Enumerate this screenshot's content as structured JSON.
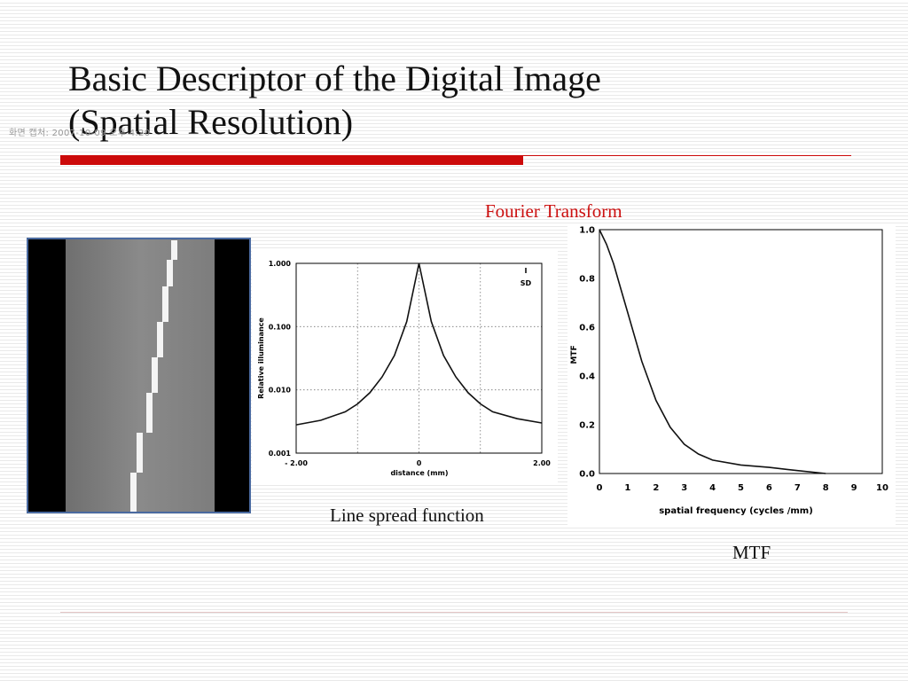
{
  "slide": {
    "title_line1": "Basic Descriptor of the Digital Image",
    "title_line2": "(Spatial Resolution)",
    "watermark": "화면 캡처: 2007-10-09 오후 4:20",
    "fourier_label": "Fourier Transform",
    "lsf_caption": "Line spread function",
    "mtf_caption": "MTF"
  },
  "chart_data": [
    {
      "type": "line",
      "name": "lsf",
      "xlabel": "distance (mm)",
      "ylabel": "Relative illuminance",
      "yscale": "log",
      "xlim": [
        -2.0,
        2.0
      ],
      "ylim": [
        0.001,
        1.0
      ],
      "x_tick_labels": [
        "- 2.00",
        "0",
        "2.00"
      ],
      "y_tick_labels": [
        "0.001",
        "0.010",
        "0.100",
        "1.000"
      ],
      "legend": [
        "I",
        "SD"
      ],
      "grid": true,
      "x": [
        -2.0,
        -1.6,
        -1.2,
        -1.0,
        -0.8,
        -0.6,
        -0.4,
        -0.2,
        0.0,
        0.2,
        0.4,
        0.6,
        0.8,
        1.0,
        1.2,
        1.6,
        2.0
      ],
      "y": [
        0.0028,
        0.0033,
        0.0045,
        0.006,
        0.009,
        0.016,
        0.035,
        0.12,
        1.0,
        0.12,
        0.035,
        0.016,
        0.009,
        0.006,
        0.0045,
        0.0035,
        0.003
      ]
    },
    {
      "type": "line",
      "name": "mtf",
      "xlabel": "spatial frequency (cycles /mm)",
      "ylabel": "MTF",
      "xlim": [
        0,
        10
      ],
      "ylim": [
        0.0,
        1.0
      ],
      "x_ticks": [
        0,
        1,
        2,
        3,
        4,
        5,
        6,
        7,
        8,
        9,
        10
      ],
      "y_ticks": [
        "0.0",
        "0.2",
        "0.4",
        "0.6",
        "0.8",
        "1.0"
      ],
      "grid": false,
      "x": [
        0,
        0.25,
        0.5,
        0.75,
        1.0,
        1.5,
        2.0,
        2.5,
        3.0,
        3.5,
        4.0,
        5.0,
        6.0,
        7.0,
        8.0
      ],
      "y": [
        1.0,
        0.94,
        0.86,
        0.76,
        0.66,
        0.46,
        0.3,
        0.19,
        0.12,
        0.08,
        0.055,
        0.035,
        0.025,
        0.012,
        0.0
      ]
    }
  ]
}
